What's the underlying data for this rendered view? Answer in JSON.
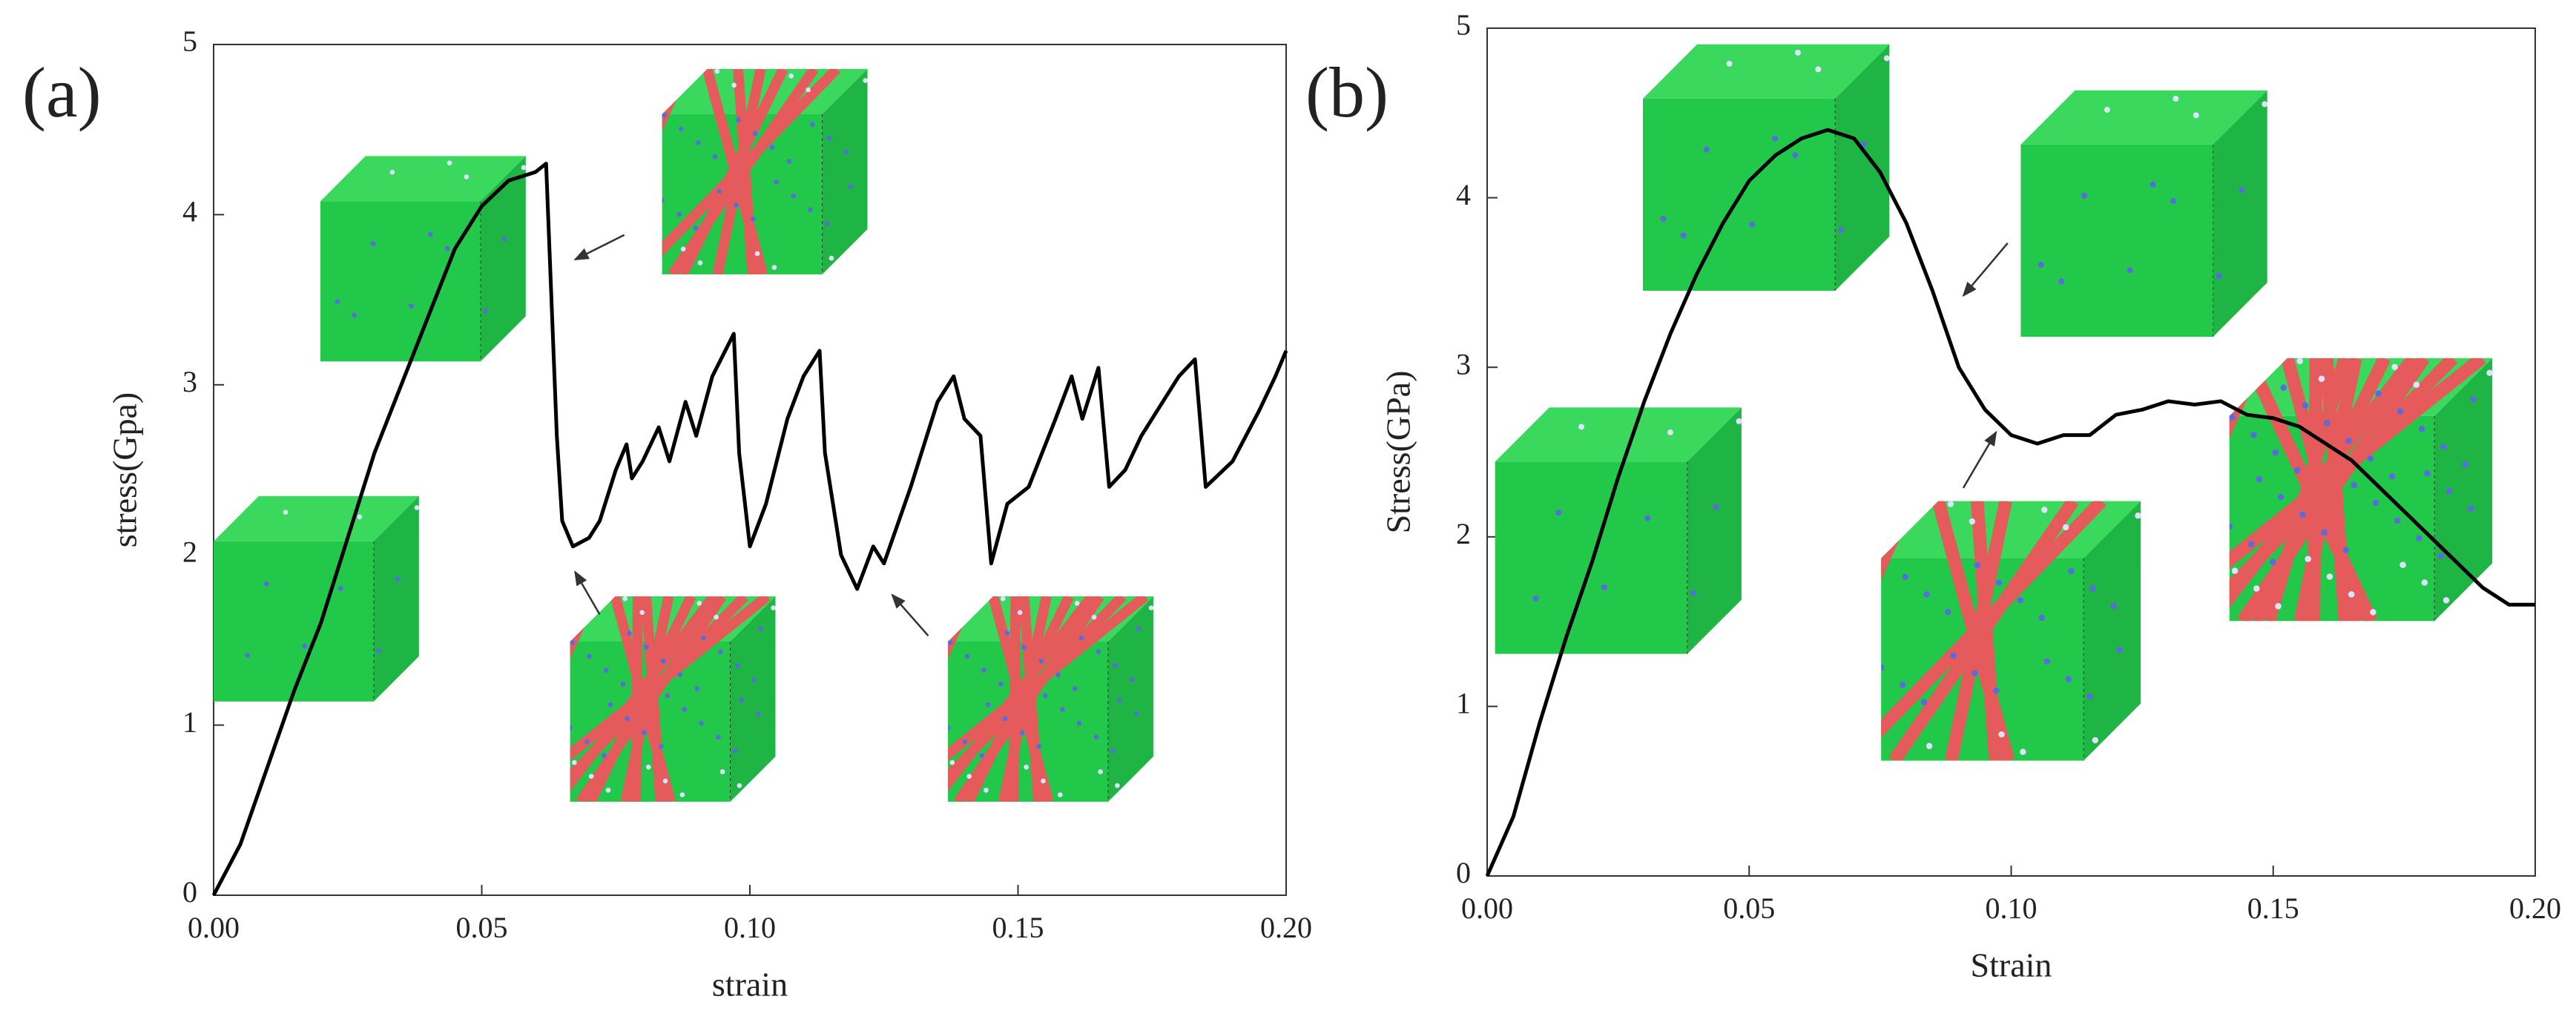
{
  "chart_data": [
    {
      "type": "line",
      "panel_label": "(a)",
      "x_label": "strain",
      "y_label": "stress(Gpa)",
      "xlim": [
        0,
        0.2
      ],
      "ylim": [
        0,
        5
      ],
      "xticks": [
        {
          "value": 0,
          "label": "0.00"
        },
        {
          "value": 0.05,
          "label": "0.05"
        },
        {
          "value": 0.1,
          "label": "0.10"
        },
        {
          "value": 0.15,
          "label": "0.15"
        },
        {
          "value": 0.2,
          "label": "0.20"
        }
      ],
      "yticks": [
        0,
        1,
        2,
        3,
        4,
        5
      ],
      "series": [
        {
          "color": "#000000",
          "x": [
            0,
            0.005,
            0.01,
            0.015,
            0.02,
            0.025,
            0.03,
            0.035,
            0.04,
            0.045,
            0.05,
            0.055,
            0.06,
            0.062,
            0.063,
            0.064,
            0.065,
            0.067,
            0.07,
            0.072,
            0.075,
            0.077,
            0.078,
            0.08,
            0.083,
            0.085,
            0.088,
            0.09,
            0.093,
            0.097,
            0.098,
            0.1,
            0.103,
            0.107,
            0.11,
            0.113,
            0.114,
            0.117,
            0.12,
            0.123,
            0.125,
            0.13,
            0.135,
            0.138,
            0.14,
            0.143,
            0.145,
            0.148,
            0.152,
            0.157,
            0.16,
            0.162,
            0.165,
            0.167,
            0.17,
            0.173,
            0.176,
            0.18,
            0.183,
            0.185,
            0.19,
            0.195,
            0.198,
            0.2
          ],
          "values": [
            0,
            0.3,
            0.75,
            1.2,
            1.6,
            2.1,
            2.6,
            3.0,
            3.4,
            3.8,
            4.05,
            4.2,
            4.25,
            4.3,
            3.5,
            2.7,
            2.2,
            2.05,
            2.1,
            2.2,
            2.5,
            2.65,
            2.45,
            2.55,
            2.75,
            2.55,
            2.9,
            2.7,
            3.05,
            3.3,
            2.6,
            2.05,
            2.3,
            2.8,
            3.05,
            3.2,
            2.6,
            2.0,
            1.8,
            2.05,
            1.95,
            2.4,
            2.9,
            3.05,
            2.8,
            2.7,
            1.95,
            2.3,
            2.4,
            2.8,
            3.05,
            2.8,
            3.1,
            2.4,
            2.5,
            2.7,
            2.85,
            3.05,
            3.15,
            2.4,
            2.55,
            2.85,
            3.05,
            3.2
          ]
        }
      ]
    },
    {
      "type": "line",
      "panel_label": "(b)",
      "x_label": "Strain",
      "y_label": "Stress(GPa)",
      "xlim": [
        0,
        0.2
      ],
      "ylim": [
        0,
        5
      ],
      "xticks": [
        {
          "value": 0,
          "label": "0.00"
        },
        {
          "value": 0.05,
          "label": "0.05"
        },
        {
          "value": 0.1,
          "label": "0.10"
        },
        {
          "value": 0.15,
          "label": "0.15"
        },
        {
          "value": 0.2,
          "label": "0.20"
        }
      ],
      "yticks": [
        0,
        1,
        2,
        3,
        4,
        5
      ],
      "series": [
        {
          "color": "#000000",
          "x": [
            0,
            0.005,
            0.01,
            0.015,
            0.02,
            0.025,
            0.03,
            0.035,
            0.04,
            0.045,
            0.05,
            0.055,
            0.06,
            0.065,
            0.07,
            0.075,
            0.08,
            0.085,
            0.09,
            0.095,
            0.1,
            0.105,
            0.11,
            0.115,
            0.12,
            0.125,
            0.13,
            0.135,
            0.14,
            0.145,
            0.15,
            0.155,
            0.16,
            0.165,
            0.17,
            0.175,
            0.18,
            0.185,
            0.19,
            0.195,
            0.2
          ],
          "values": [
            0,
            0.35,
            0.9,
            1.4,
            1.85,
            2.35,
            2.8,
            3.2,
            3.55,
            3.85,
            4.1,
            4.25,
            4.35,
            4.4,
            4.35,
            4.15,
            3.85,
            3.45,
            3.0,
            2.75,
            2.6,
            2.55,
            2.6,
            2.6,
            2.72,
            2.75,
            2.8,
            2.78,
            2.8,
            2.72,
            2.7,
            2.65,
            2.55,
            2.45,
            2.3,
            2.15,
            2.0,
            1.85,
            1.7,
            1.6,
            1.6
          ]
        }
      ]
    }
  ]
}
